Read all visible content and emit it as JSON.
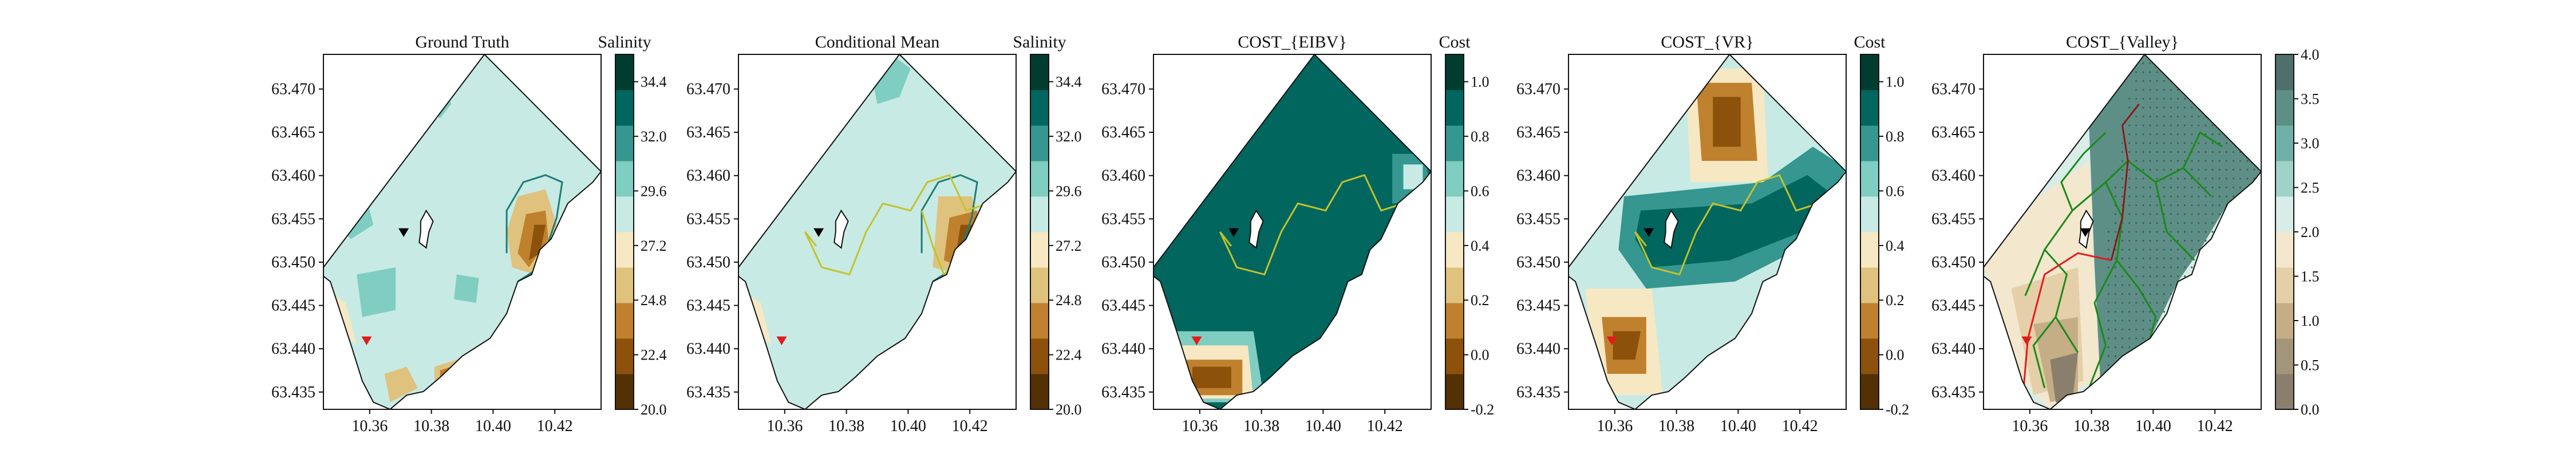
{
  "chart_data": [
    {
      "type": "heatmap",
      "title": "Ground Truth",
      "colorbar": {
        "title": "Salinity",
        "ticks": [
          "20.0",
          "22.4",
          "24.8",
          "27.2",
          "29.6",
          "32.0",
          "34.4"
        ],
        "range": [
          20.0,
          35.6
        ]
      },
      "x_ticks": [
        "10.36",
        "10.38",
        "10.40",
        "10.42"
      ],
      "y_ticks": [
        "63.435",
        "63.440",
        "63.445",
        "63.450",
        "63.455",
        "63.460",
        "63.465",
        "63.470"
      ],
      "markers": [
        {
          "kind": "current",
          "lon": 10.371,
          "lat": 63.4535,
          "color": "#000000"
        },
        {
          "kind": "target",
          "lon": 10.359,
          "lat": 63.441,
          "color": "#e41a1c"
        }
      ]
    },
    {
      "type": "heatmap",
      "title": "Conditional Mean",
      "colorbar": {
        "title": "Salinity",
        "ticks": [
          "20.0",
          "22.4",
          "24.8",
          "27.2",
          "29.6",
          "32.0",
          "34.4"
        ],
        "range": [
          20.0,
          35.6
        ]
      },
      "x_ticks": [
        "10.36",
        "10.38",
        "10.40",
        "10.42"
      ],
      "y_ticks": [
        "63.435",
        "63.440",
        "63.445",
        "63.450",
        "63.455",
        "63.460",
        "63.465",
        "63.470"
      ],
      "markers": [
        {
          "kind": "current",
          "lon": 10.371,
          "lat": 63.4535,
          "color": "#000000"
        },
        {
          "kind": "target",
          "lon": 10.359,
          "lat": 63.441,
          "color": "#e41a1c"
        }
      ]
    },
    {
      "type": "heatmap",
      "title": "COST_{EIBV}",
      "colorbar": {
        "title": "Cost",
        "ticks": [
          "-0.2",
          "0.0",
          "0.2",
          "0.4",
          "0.6",
          "0.8",
          "1.0"
        ],
        "range": [
          -0.2,
          1.1
        ]
      },
      "x_ticks": [
        "10.36",
        "10.38",
        "10.40",
        "10.42"
      ],
      "y_ticks": [
        "63.435",
        "63.440",
        "63.445",
        "63.450",
        "63.455",
        "63.460",
        "63.465",
        "63.470"
      ],
      "markers": [
        {
          "kind": "current",
          "lon": 10.371,
          "lat": 63.4535,
          "color": "#000000"
        },
        {
          "kind": "target",
          "lon": 10.359,
          "lat": 63.441,
          "color": "#e41a1c"
        }
      ]
    },
    {
      "type": "heatmap",
      "title": "COST_{VR}",
      "colorbar": {
        "title": "Cost",
        "ticks": [
          "-0.2",
          "0.0",
          "0.2",
          "0.4",
          "0.6",
          "0.8",
          "1.0"
        ],
        "range": [
          -0.2,
          1.1
        ]
      },
      "x_ticks": [
        "10.36",
        "10.38",
        "10.40",
        "10.42"
      ],
      "y_ticks": [
        "63.435",
        "63.440",
        "63.445",
        "63.450",
        "63.455",
        "63.460",
        "63.465",
        "63.470"
      ],
      "markers": [
        {
          "kind": "current",
          "lon": 10.371,
          "lat": 63.4535,
          "color": "#000000"
        },
        {
          "kind": "target",
          "lon": 10.359,
          "lat": 63.441,
          "color": "#e41a1c"
        }
      ]
    },
    {
      "type": "heatmap",
      "title": "COST_{Valley}",
      "colorbar": {
        "title": "",
        "ticks": [
          "0.0",
          "0.5",
          "1.0",
          "1.5",
          "2.0",
          "2.5",
          "3.0",
          "3.5",
          "4.0"
        ],
        "range": [
          0.0,
          4.0
        ]
      },
      "x_ticks": [
        "10.36",
        "10.38",
        "10.40",
        "10.42"
      ],
      "y_ticks": [
        "63.435",
        "63.440",
        "63.445",
        "63.450",
        "63.455",
        "63.460",
        "63.465",
        "63.470"
      ],
      "markers": [
        {
          "kind": "current",
          "lon": 10.378,
          "lat": 63.4535,
          "color": "#000000"
        },
        {
          "kind": "target",
          "lon": 10.359,
          "lat": 63.441,
          "color": "#e41a1c"
        }
      ]
    }
  ],
  "colors": {
    "salinity_bands": [
      "#543005",
      "#8c510a",
      "#bf812d",
      "#dfc27d",
      "#f6e8c3",
      "#c7eae5",
      "#80cdc1",
      "#35978f",
      "#01665e",
      "#003c30"
    ],
    "cost_bands": [
      "#543005",
      "#8c510a",
      "#bf812d",
      "#dfc27d",
      "#f6e8c3",
      "#c7eae5",
      "#80cdc1",
      "#35978f",
      "#01665e",
      "#003c30"
    ],
    "valley_bands": [
      "#8a7f6d",
      "#a39579",
      "#c5ad86",
      "#e4cfa8",
      "#f3e7cd",
      "#d8ede8",
      "#9fd2c9",
      "#6fb0a7",
      "#5d8f87",
      "#4f6f6a"
    ],
    "path": "#c3c22b",
    "tree": "#1a8a1a",
    "red_path": "#e41a1c"
  }
}
